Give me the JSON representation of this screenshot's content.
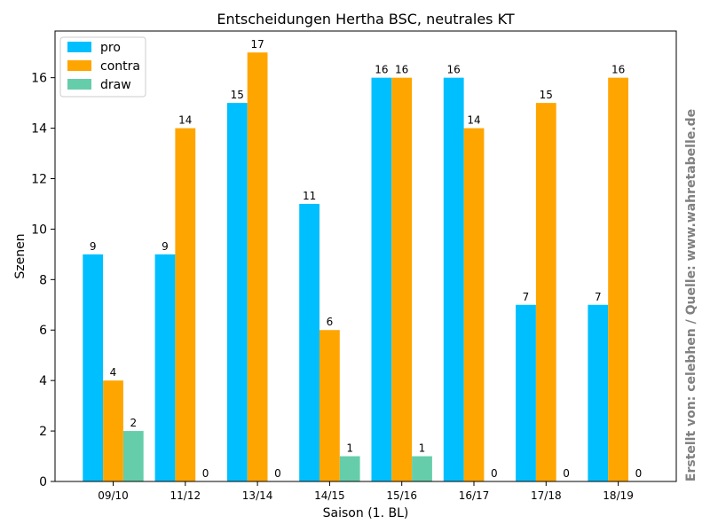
{
  "chart_data": {
    "type": "bar",
    "title": "Entscheidungen Hertha BSC, neutrales KT",
    "xlabel": "Saison (1. BL)",
    "ylabel": "Szenen",
    "categories": [
      "09/10",
      "11/12",
      "13/14",
      "14/15",
      "15/16",
      "16/17",
      "17/18",
      "18/19"
    ],
    "series": [
      {
        "name": "pro",
        "color": "#00bfff",
        "values": [
          9,
          9,
          15,
          11,
          16,
          16,
          7,
          7
        ]
      },
      {
        "name": "contra",
        "color": "#ffa500",
        "values": [
          4,
          14,
          17,
          6,
          16,
          14,
          15,
          16
        ]
      },
      {
        "name": "draw",
        "color": "#66cdaa",
        "values": [
          2,
          0,
          0,
          1,
          1,
          0,
          0,
          0
        ]
      }
    ],
    "ylim": [
      0,
      17.85
    ],
    "yticks": [
      0,
      2,
      4,
      6,
      8,
      10,
      12,
      14,
      16
    ],
    "grid": false,
    "legend_position": "top-left",
    "data_labels": true
  },
  "credit": "Erstellt von: celebhen / Quelle: www.wahretabelle.de"
}
